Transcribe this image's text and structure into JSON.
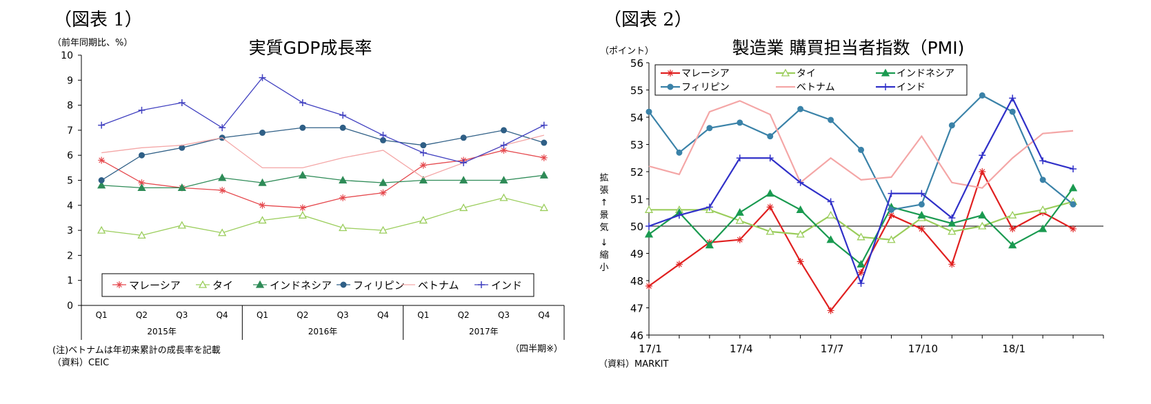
{
  "figure1": {
    "label": "（図表 1）",
    "unit_label": "（前年同期比、%）",
    "note": "(注)ベトナムは年初来累計の成長率を記載",
    "source": "（資料）CEIC",
    "xaxis_note": "（四半期※）"
  },
  "figure2": {
    "label": "（図表 2）",
    "unit_label": "（ポイント）",
    "side_label_up": "拡張↑景気",
    "side_label_down": "↓縮小",
    "source": "（資料）MARKIT"
  },
  "chart_data": [
    {
      "type": "line",
      "title": "実質GDP成長率",
      "xlabel": "",
      "ylabel": "（前年同期比、%）",
      "ylim": [
        0,
        10
      ],
      "yticks": [
        0,
        1,
        2,
        3,
        4,
        5,
        6,
        7,
        8,
        9,
        10
      ],
      "categories": [
        "Q1",
        "Q2",
        "Q3",
        "Q4",
        "Q1",
        "Q2",
        "Q3",
        "Q4",
        "Q1",
        "Q2",
        "Q3",
        "Q4"
      ],
      "year_groups": [
        "2015年",
        "2016年",
        "2017年"
      ],
      "legend_position": "bottom-inside",
      "series": [
        {
          "name": "マレーシア",
          "color": "#e5484d",
          "marker": "star",
          "values": [
            5.8,
            4.9,
            4.7,
            4.6,
            4.0,
            3.9,
            4.3,
            4.5,
            5.6,
            5.8,
            6.2,
            5.9
          ]
        },
        {
          "name": "タイ",
          "color": "#9acd5b",
          "marker": "triangle-open",
          "values": [
            3.0,
            2.8,
            3.2,
            2.9,
            3.4,
            3.6,
            3.1,
            3.0,
            3.4,
            3.9,
            4.3,
            3.9
          ]
        },
        {
          "name": "インドネシア",
          "color": "#2e8b57",
          "marker": "triangle",
          "values": [
            4.8,
            4.7,
            4.7,
            5.1,
            4.9,
            5.2,
            5.0,
            4.9,
            5.0,
            5.0,
            5.0,
            5.2
          ]
        },
        {
          "name": "フィリピン",
          "color": "#2f5f86",
          "marker": "circle",
          "values": [
            5.0,
            6.0,
            6.3,
            6.7,
            6.9,
            7.1,
            7.1,
            6.6,
            6.4,
            6.7,
            7.0,
            6.5
          ]
        },
        {
          "name": "ベトナム",
          "color": "#f4a6a6",
          "marker": "none",
          "values": [
            6.1,
            6.3,
            6.4,
            6.7,
            5.5,
            5.5,
            5.9,
            6.2,
            5.1,
            5.7,
            6.4,
            6.8
          ]
        },
        {
          "name": "インド",
          "color": "#4040c0",
          "marker": "plus",
          "values": [
            7.2,
            7.8,
            8.1,
            7.1,
            9.1,
            8.1,
            7.6,
            6.8,
            6.1,
            5.7,
            6.4,
            7.2
          ]
        }
      ]
    },
    {
      "type": "line",
      "title": "製造業 購買担当者指数（PMI)",
      "xlabel": "",
      "ylabel": "（ポイント）",
      "ylim": [
        46,
        56
      ],
      "yticks": [
        46,
        47,
        48,
        49,
        50,
        51,
        52,
        53,
        54,
        55,
        56
      ],
      "reference_line": 50,
      "x_tick_labels": [
        "17/1",
        "17/4",
        "17/7",
        "17/10",
        "18/1"
      ],
      "legend_position": "top-left",
      "series": [
        {
          "name": "マレーシア",
          "color": "#e02020",
          "marker": "star",
          "values": [
            47.8,
            48.6,
            49.4,
            49.5,
            50.7,
            48.7,
            46.9,
            48.3,
            50.4,
            49.9,
            48.6,
            52.0,
            49.9,
            50.5,
            49.9
          ]
        },
        {
          "name": "タイ",
          "color": "#9acd5b",
          "marker": "triangle-open",
          "values": [
            50.6,
            50.6,
            50.6,
            50.2,
            49.8,
            49.7,
            50.4,
            49.6,
            49.5,
            50.3,
            49.8,
            50.0,
            50.4,
            50.6,
            50.9
          ]
        },
        {
          "name": "インドネシア",
          "color": "#1a9a50",
          "marker": "triangle",
          "values": [
            49.7,
            50.5,
            49.3,
            50.5,
            51.2,
            50.6,
            49.5,
            48.6,
            50.7,
            50.4,
            50.1,
            50.4,
            49.3,
            49.9,
            51.4
          ]
        },
        {
          "name": "フィリピン",
          "color": "#3a82a8",
          "marker": "circle",
          "values": [
            54.2,
            52.7,
            53.6,
            53.8,
            53.3,
            54.3,
            53.9,
            52.8,
            50.6,
            50.8,
            53.7,
            54.8,
            54.2,
            51.7,
            50.8
          ]
        },
        {
          "name": "ベトナム",
          "color": "#f4a6a6",
          "marker": "none",
          "values": [
            52.2,
            51.9,
            54.2,
            54.6,
            54.1,
            51.6,
            52.5,
            51.7,
            51.8,
            53.3,
            51.6,
            51.4,
            52.5,
            53.4,
            53.5
          ]
        },
        {
          "name": "インド",
          "color": "#3030c8",
          "marker": "plus",
          "values": [
            50.0,
            50.4,
            50.7,
            52.5,
            52.5,
            51.6,
            50.9,
            47.9,
            51.2,
            51.2,
            50.3,
            52.6,
            54.7,
            52.4,
            52.1
          ]
        }
      ]
    }
  ]
}
